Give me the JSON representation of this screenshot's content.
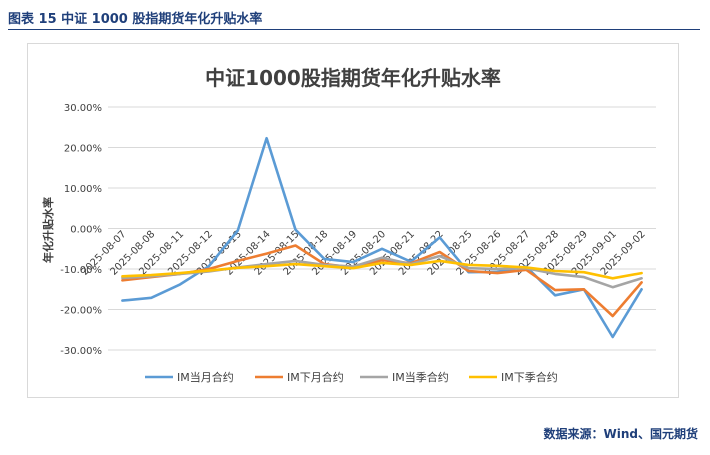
{
  "figure_caption": "图表 15  中证 1000 股指期货年化升贴水率",
  "source_note": "数据来源：Wind、国元期货",
  "colors": {
    "caption": "#1f3f7a",
    "grid": "#d9d9d9",
    "axis_text": "#404040"
  },
  "chart_data": {
    "type": "line",
    "title": "中证1000股指期货年化升贴水率",
    "ylabel": "年化升贴水率",
    "xlabel": "",
    "ylim": [
      -0.3,
      0.3
    ],
    "yticks": [
      0.3,
      0.2,
      0.1,
      0.0,
      -0.1,
      -0.2,
      -0.3
    ],
    "ytick_labels": [
      "30.00%",
      "20.00%",
      "10.00%",
      "0.00%",
      "-10.00%",
      "-20.00%",
      "-30.00%"
    ],
    "grid": true,
    "legend_position": "bottom",
    "categories": [
      "2025-08-07",
      "2025-08-08",
      "2025-08-11",
      "2025-08-12",
      "2025-08-13",
      "2025-08-14",
      "2025-08-15",
      "2025-08-18",
      "2025-08-19",
      "2025-08-20",
      "2025-08-21",
      "2025-08-22",
      "2025-08-25",
      "2025-08-26",
      "2025-08-27",
      "2025-08-28",
      "2025-08-29",
      "2025-09-01",
      "2025-09-02"
    ],
    "series": [
      {
        "name": "IM当月合约",
        "color": "#5b9bd5",
        "values": [
          -0.178,
          -0.171,
          -0.138,
          -0.093,
          -0.005,
          0.223,
          -0.003,
          -0.075,
          -0.083,
          -0.05,
          -0.082,
          -0.022,
          -0.108,
          -0.107,
          -0.094,
          -0.165,
          -0.15,
          -0.268,
          -0.15
        ]
      },
      {
        "name": "IM下月合约",
        "color": "#ed7d31",
        "values": [
          -0.128,
          -0.12,
          -0.112,
          -0.1,
          -0.08,
          -0.062,
          -0.042,
          -0.088,
          -0.096,
          -0.078,
          -0.086,
          -0.058,
          -0.105,
          -0.11,
          -0.102,
          -0.152,
          -0.15,
          -0.216,
          -0.133
        ]
      },
      {
        "name": "IM当季合约",
        "color": "#a5a5a5",
        "values": [
          -0.122,
          -0.118,
          -0.112,
          -0.106,
          -0.096,
          -0.088,
          -0.08,
          -0.09,
          -0.094,
          -0.072,
          -0.088,
          -0.068,
          -0.098,
          -0.1,
          -0.098,
          -0.112,
          -0.12,
          -0.145,
          -0.123
        ]
      },
      {
        "name": "IM下季合约",
        "color": "#ffc000",
        "values": [
          -0.118,
          -0.115,
          -0.11,
          -0.104,
          -0.097,
          -0.093,
          -0.088,
          -0.093,
          -0.098,
          -0.085,
          -0.09,
          -0.08,
          -0.09,
          -0.092,
          -0.096,
          -0.105,
          -0.108,
          -0.123,
          -0.11
        ]
      }
    ]
  }
}
